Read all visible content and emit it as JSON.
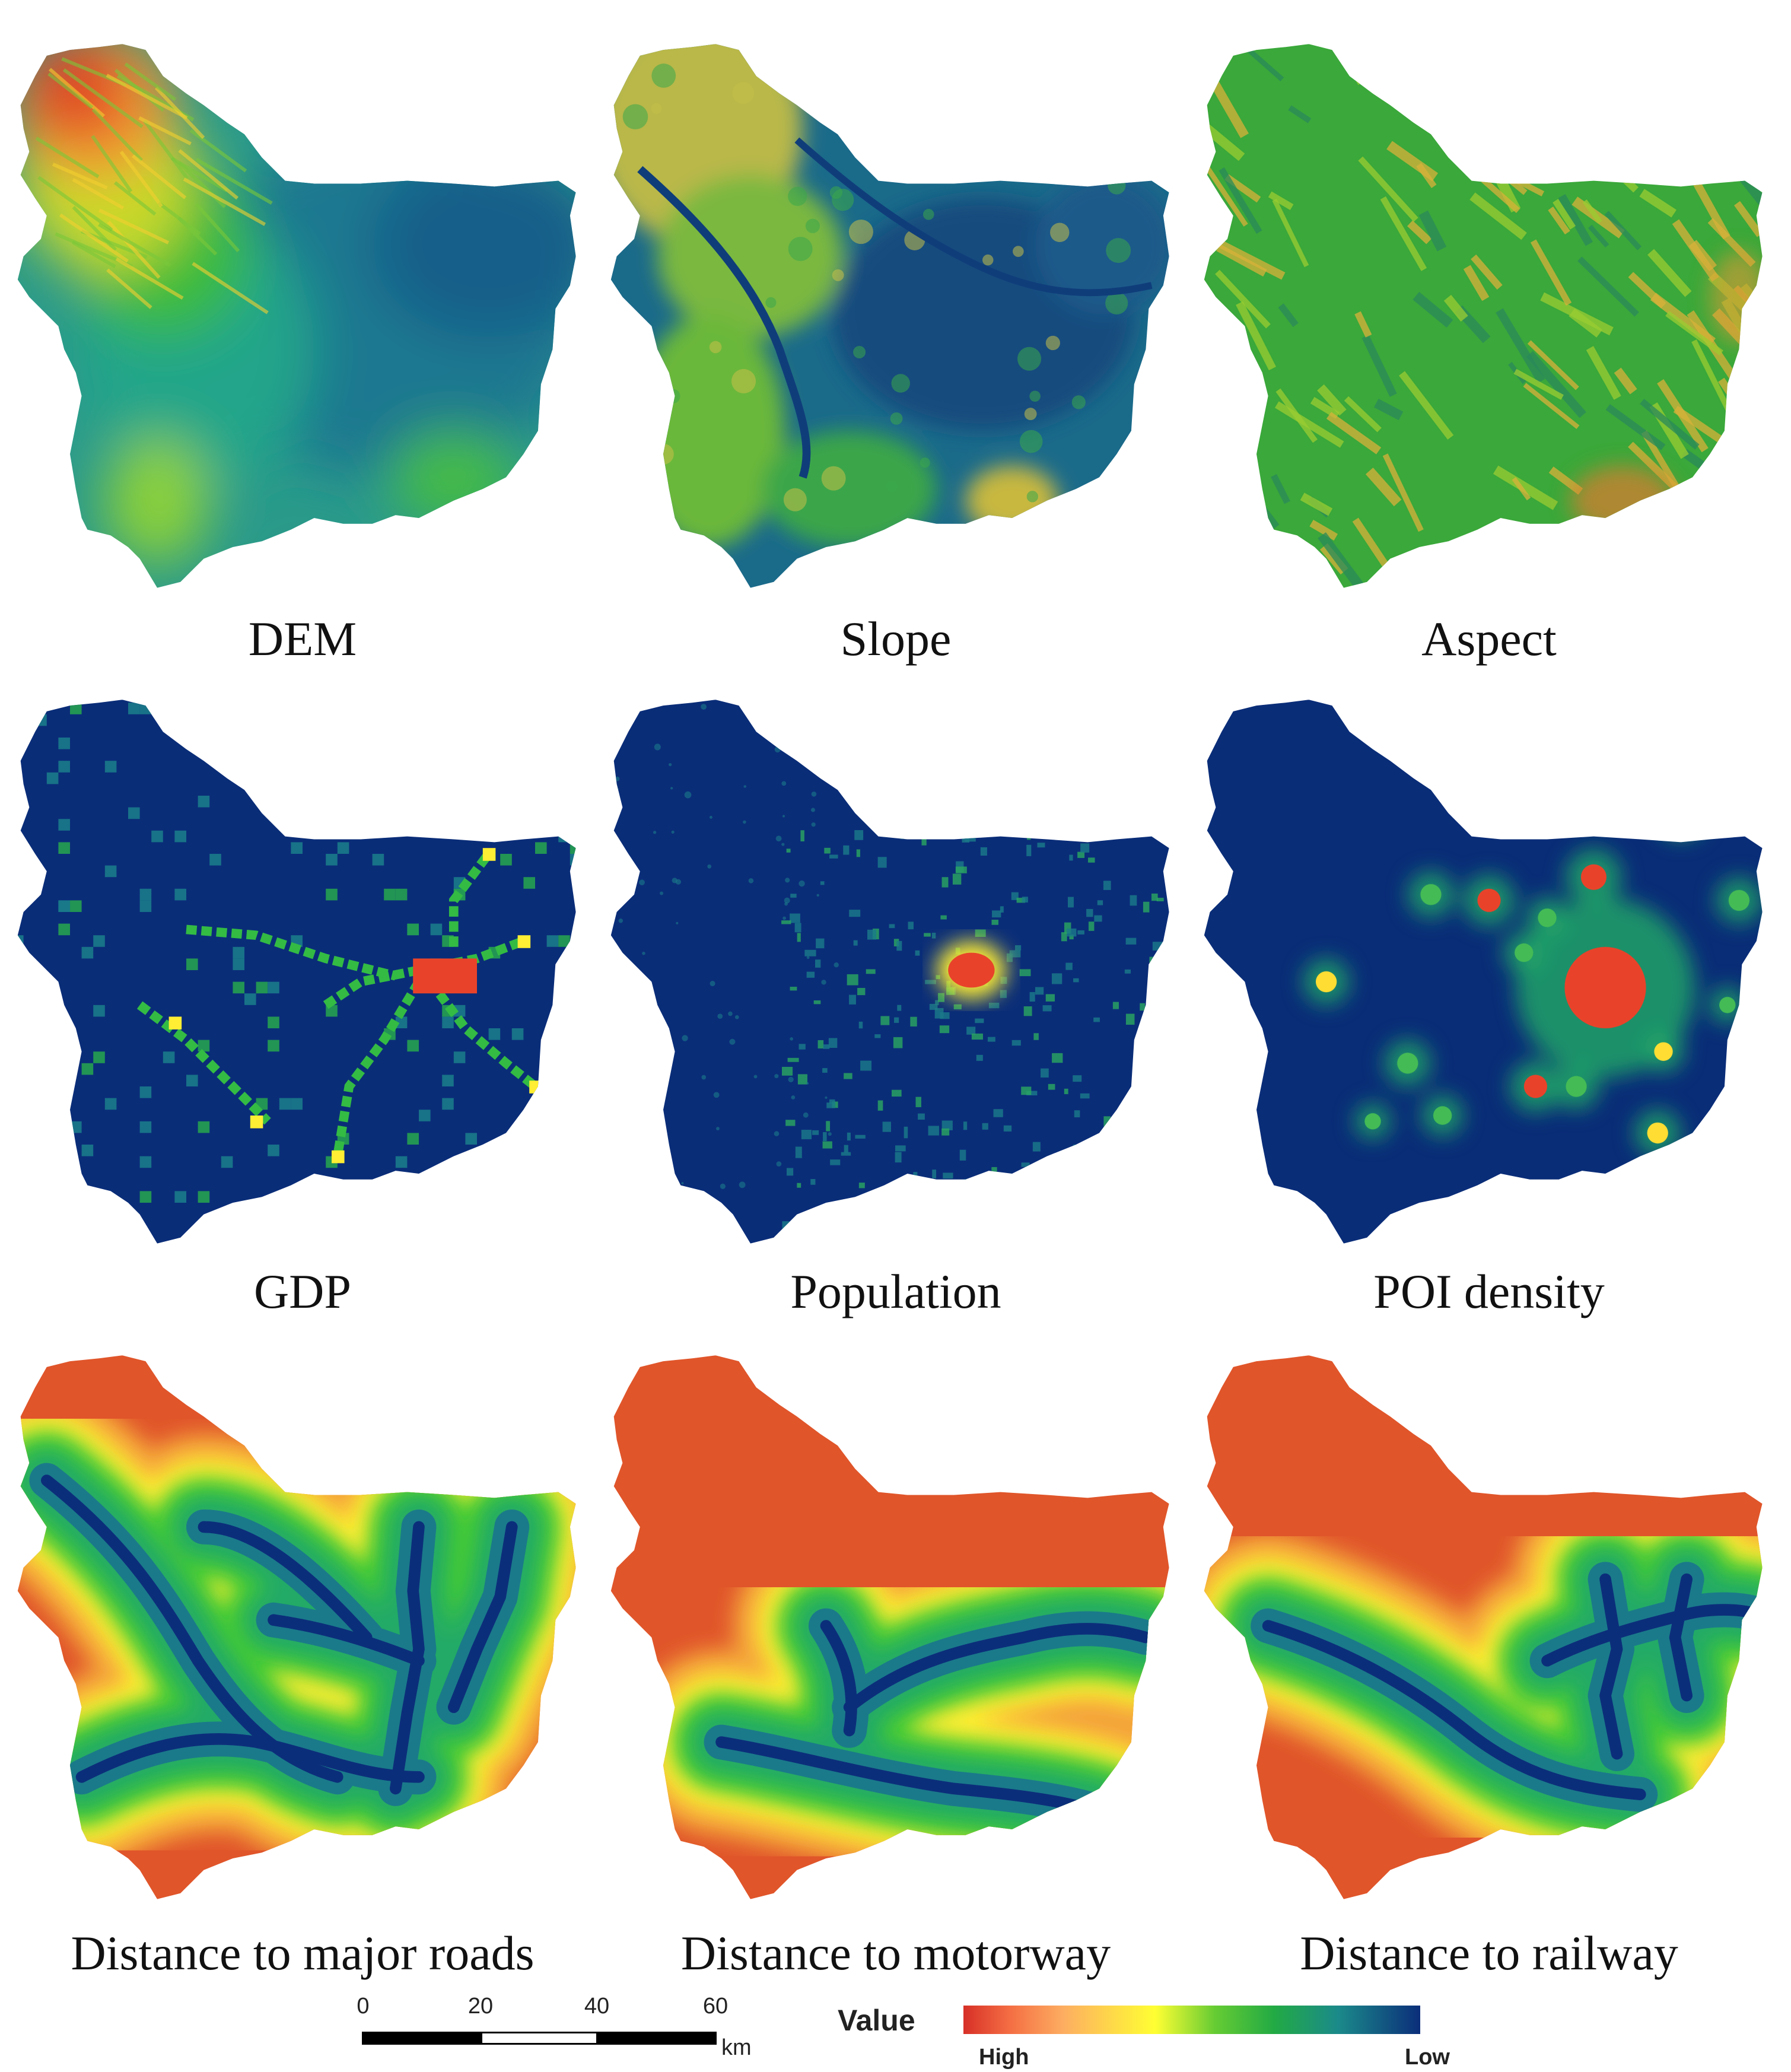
{
  "panels": [
    {
      "id": "dem",
      "caption": "DEM",
      "style": "terrain-dem"
    },
    {
      "id": "slope",
      "caption": "Slope",
      "style": "terrain-slope"
    },
    {
      "id": "aspect",
      "caption": "Aspect",
      "style": "terrain-aspect"
    },
    {
      "id": "gdp",
      "caption": "GDP",
      "style": "hotspot-gdp"
    },
    {
      "id": "population",
      "caption": "Population",
      "style": "hotspot-pop"
    },
    {
      "id": "poi",
      "caption": "POI density",
      "style": "hotspot-poi"
    },
    {
      "id": "dist-roads",
      "caption": "Distance to major roads",
      "style": "distance-roads"
    },
    {
      "id": "dist-motorway",
      "caption": "Distance to motorway",
      "style": "distance-motorway"
    },
    {
      "id": "dist-railway",
      "caption": "Distance to railway",
      "style": "distance-railway"
    }
  ],
  "scale_bar": {
    "ticks": [
      "0",
      "20",
      "40",
      "60"
    ],
    "unit": "km"
  },
  "legend": {
    "title": "Value",
    "high_label": "High",
    "low_label": "Low",
    "colors": [
      "#d73027",
      "#fdae61",
      "#ffff33",
      "#33bb33",
      "#1b8a8a",
      "#0b2e7a"
    ]
  }
}
